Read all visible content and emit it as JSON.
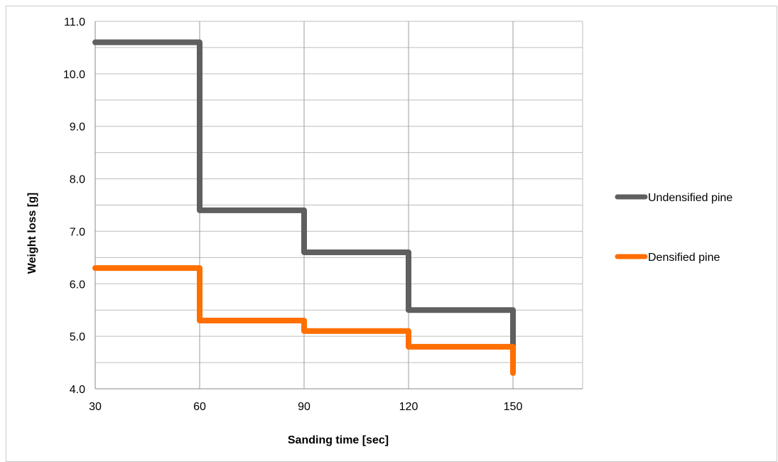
{
  "chart_data": {
    "type": "line",
    "step": true,
    "title": "",
    "xlabel": "Sanding time [sec]",
    "ylabel": "Weight loss  [g]",
    "xlim": [
      30,
      170
    ],
    "ylim": [
      4.0,
      11.0
    ],
    "x_ticks": [
      30,
      60,
      90,
      120,
      150
    ],
    "y_ticks": [
      4.0,
      5.0,
      6.0,
      7.0,
      8.0,
      9.0,
      10.0,
      11.0
    ],
    "grid": "major-and-minor",
    "legend_position": "right",
    "series": [
      {
        "name": "Undensified pine",
        "color": "#5f5f5f",
        "steps": [
          {
            "x": 30,
            "y": 10.6
          },
          {
            "x": 60,
            "y": 7.4
          },
          {
            "x": 90,
            "y": 6.6
          },
          {
            "x": 120,
            "y": 5.5
          },
          {
            "x": 150,
            "y": 4.8
          }
        ]
      },
      {
        "name": "Densified pine",
        "color": "#ff6f00",
        "steps": [
          {
            "x": 30,
            "y": 6.3
          },
          {
            "x": 60,
            "y": 5.3
          },
          {
            "x": 90,
            "y": 5.1
          },
          {
            "x": 120,
            "y": 4.8
          },
          {
            "x": 150,
            "y": 4.3
          }
        ]
      }
    ]
  }
}
